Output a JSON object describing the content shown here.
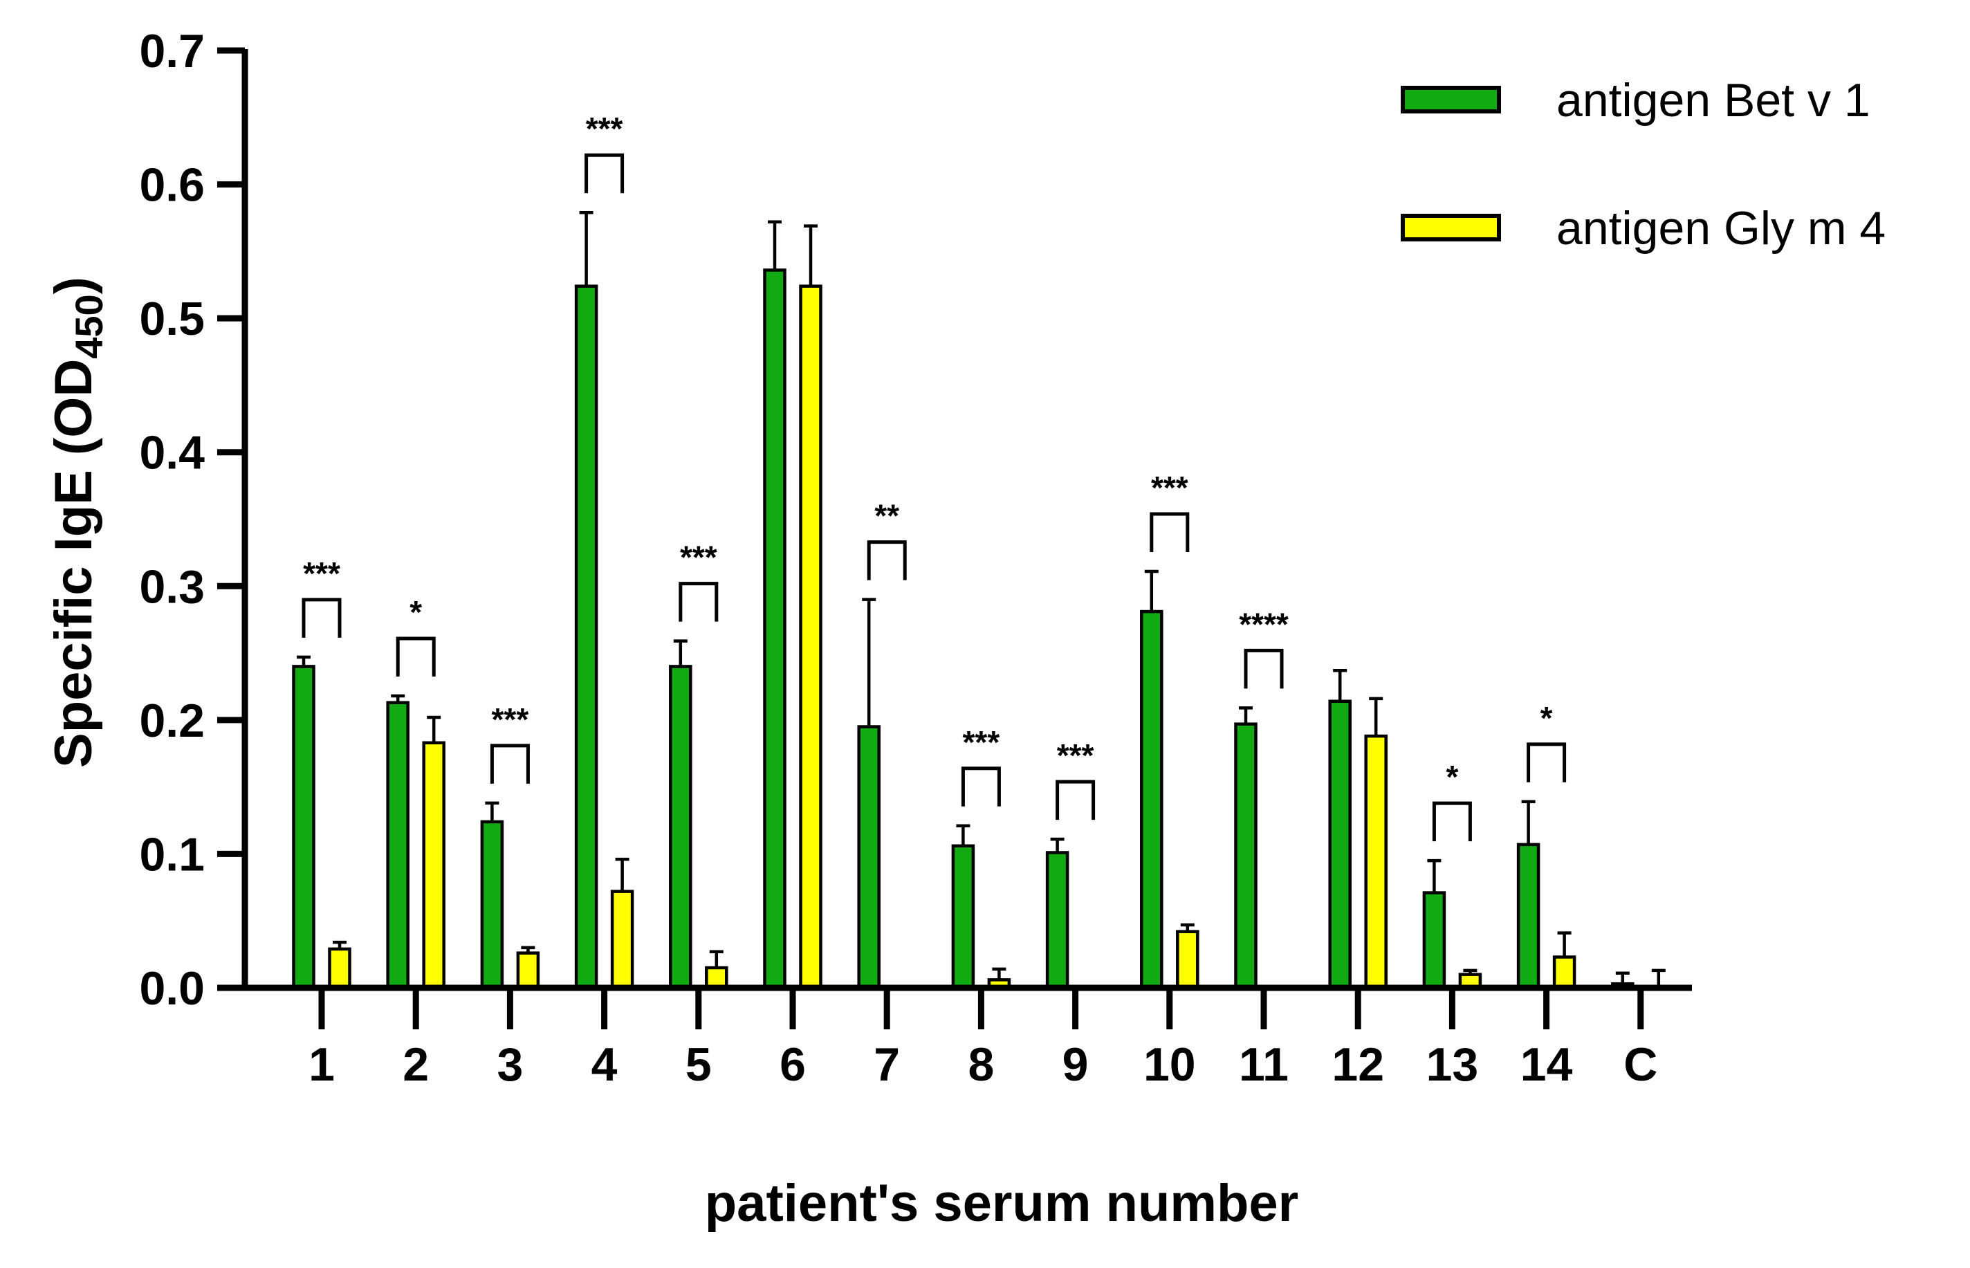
{
  "chart_data": {
    "type": "bar",
    "xlabel": "patient's serum number",
    "ylabel": "Specific IgE (OD",
    "ylabel_subscript": "450",
    "ylabel_suffix": ")",
    "ylim": [
      0,
      0.7
    ],
    "yticks": [
      "0.0",
      "0.1",
      "0.2",
      "0.3",
      "0.4",
      "0.5",
      "0.6",
      "0.7"
    ],
    "categories": [
      "1",
      "2",
      "3",
      "4",
      "5",
      "6",
      "7",
      "8",
      "9",
      "10",
      "11",
      "12",
      "13",
      "14",
      "C"
    ],
    "legend_position": "top-right",
    "series": [
      {
        "name": "antigen Bet v 1",
        "color": "#12AA12",
        "values": [
          0.24,
          0.213,
          0.124,
          0.524,
          0.24,
          0.536,
          0.195,
          0.106,
          0.101,
          0.281,
          0.197,
          0.214,
          0.071,
          0.107,
          0.003
        ],
        "errors": [
          0.007,
          0.005,
          0.014,
          0.055,
          0.019,
          0.036,
          0.095,
          0.015,
          0.01,
          0.03,
          0.012,
          0.023,
          0.024,
          0.032,
          0.008
        ]
      },
      {
        "name": "antigen Gly m 4",
        "color": "#FFFF00",
        "values": [
          0.029,
          0.183,
          0.026,
          0.072,
          0.015,
          0.524,
          0.0,
          0.006,
          0.0,
          0.042,
          0.0,
          0.188,
          0.01,
          0.023,
          0.0
        ],
        "errors": [
          0.005,
          0.019,
          0.004,
          0.024,
          0.012,
          0.045,
          0.0,
          0.008,
          0.0,
          0.005,
          0.0,
          0.028,
          0.003,
          0.018,
          0.013
        ]
      }
    ],
    "significance": [
      {
        "category": "1",
        "label": "***"
      },
      {
        "category": "2",
        "label": "*"
      },
      {
        "category": "3",
        "label": "***"
      },
      {
        "category": "4",
        "label": "***"
      },
      {
        "category": "5",
        "label": "***"
      },
      {
        "category": "7",
        "label": "**"
      },
      {
        "category": "8",
        "label": "***"
      },
      {
        "category": "9",
        "label": "***"
      },
      {
        "category": "10",
        "label": "***"
      },
      {
        "category": "11",
        "label": "****"
      },
      {
        "category": "13",
        "label": "*"
      },
      {
        "category": "14",
        "label": "*"
      }
    ]
  }
}
